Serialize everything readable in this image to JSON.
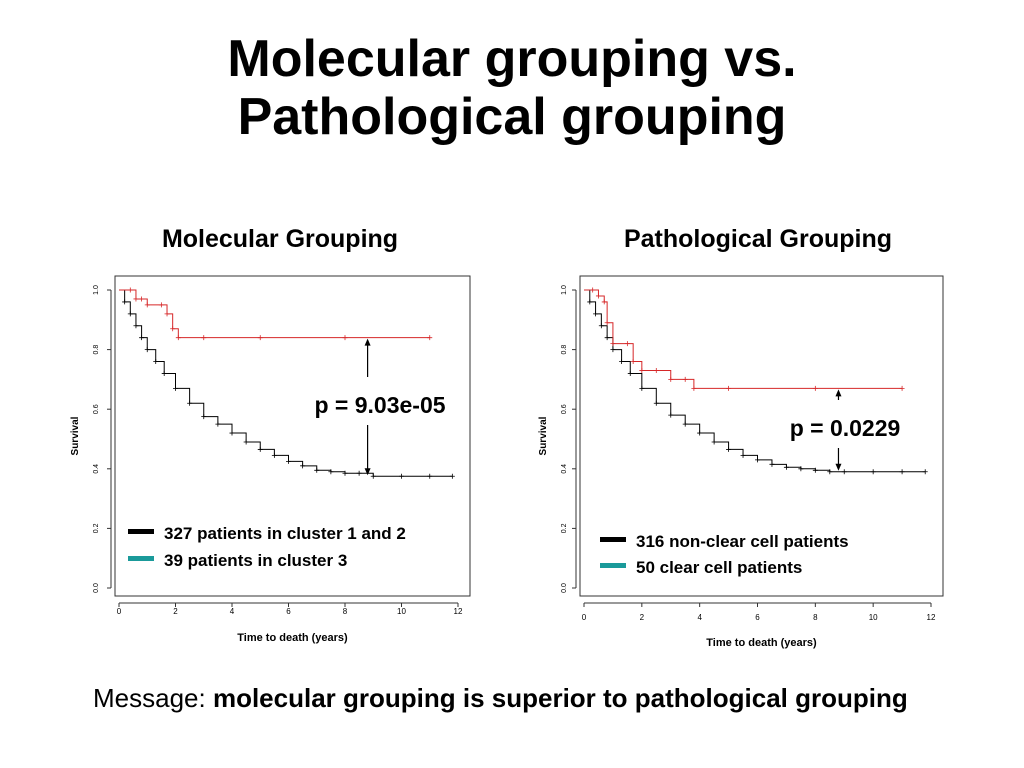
{
  "slide": {
    "title_line1": "Molecular grouping vs.",
    "title_line2": "Pathological grouping",
    "message_prefix": "Message: ",
    "message_text": "molecular grouping is superior to pathological grouping"
  },
  "colors": {
    "series_black": "#000000",
    "series_red": "#d62728",
    "legend_teal": "#1a9a9a"
  },
  "chart_data": [
    {
      "type": "line",
      "title": "Molecular Grouping",
      "xlabel": "Time to death (years)",
      "ylabel": "Survival",
      "xlim": [
        0,
        12
      ],
      "ylim": [
        0,
        1
      ],
      "xticks": [
        0,
        2,
        4,
        6,
        8,
        10,
        12
      ],
      "yticks": [
        0.0,
        0.2,
        0.4,
        0.6,
        0.8,
        1.0
      ],
      "pvalue": "p = 9.03e-05",
      "pvalue_at_x": 8.8,
      "legend": [
        "327 patients in cluster 1 and 2",
        "39 patients in cluster 3"
      ],
      "series": [
        {
          "color": "#000000",
          "x": [
            0,
            0.2,
            0.4,
            0.6,
            0.8,
            1.0,
            1.3,
            1.6,
            2.0,
            2.5,
            3.0,
            3.5,
            4.0,
            4.5,
            5.0,
            5.5,
            6.0,
            6.5,
            7.0,
            7.5,
            8.0,
            8.5,
            9.0,
            10.0,
            11.0,
            11.8
          ],
          "y": [
            1.0,
            0.96,
            0.92,
            0.88,
            0.84,
            0.8,
            0.76,
            0.72,
            0.67,
            0.62,
            0.575,
            0.55,
            0.52,
            0.49,
            0.465,
            0.445,
            0.425,
            0.41,
            0.395,
            0.39,
            0.385,
            0.385,
            0.375,
            0.375,
            0.375,
            0.375
          ]
        },
        {
          "color": "#d62728",
          "x": [
            0,
            0.4,
            0.6,
            0.8,
            1.0,
            1.5,
            1.7,
            1.9,
            2.1,
            3.0,
            5.0,
            8.0,
            11.0
          ],
          "y": [
            1.0,
            1.0,
            0.97,
            0.97,
            0.95,
            0.95,
            0.92,
            0.87,
            0.84,
            0.84,
            0.84,
            0.84,
            0.84
          ]
        }
      ]
    },
    {
      "type": "line",
      "title": "Pathological Grouping",
      "xlabel": "Time to death (years)",
      "ylabel": "Survival",
      "xlim": [
        0,
        12
      ],
      "ylim": [
        0,
        1
      ],
      "xticks": [
        0,
        2,
        4,
        6,
        8,
        10,
        12
      ],
      "yticks": [
        0.0,
        0.2,
        0.4,
        0.6,
        0.8,
        1.0
      ],
      "pvalue": "p = 0.0229",
      "pvalue_at_x": 8.8,
      "legend": [
        "316 non-clear cell patients",
        "50 clear cell patients"
      ],
      "series": [
        {
          "color": "#000000",
          "x": [
            0,
            0.2,
            0.4,
            0.6,
            0.8,
            1.0,
            1.3,
            1.6,
            2.0,
            2.5,
            3.0,
            3.5,
            4.0,
            4.5,
            5.0,
            5.5,
            6.0,
            6.5,
            7.0,
            7.5,
            8.0,
            8.5,
            9.0,
            10.0,
            11.0,
            11.8
          ],
          "y": [
            1.0,
            0.96,
            0.92,
            0.88,
            0.84,
            0.8,
            0.76,
            0.72,
            0.67,
            0.62,
            0.58,
            0.55,
            0.52,
            0.49,
            0.465,
            0.445,
            0.43,
            0.415,
            0.405,
            0.4,
            0.395,
            0.39,
            0.39,
            0.39,
            0.39,
            0.39
          ]
        },
        {
          "color": "#d62728",
          "x": [
            0,
            0.3,
            0.5,
            0.7,
            0.8,
            1.0,
            1.5,
            1.7,
            2.0,
            2.5,
            3.0,
            3.5,
            3.8,
            5.0,
            8.0,
            11.0
          ],
          "y": [
            1.0,
            1.0,
            0.98,
            0.96,
            0.89,
            0.82,
            0.82,
            0.76,
            0.73,
            0.73,
            0.7,
            0.7,
            0.67,
            0.67,
            0.67,
            0.67
          ]
        }
      ]
    }
  ]
}
